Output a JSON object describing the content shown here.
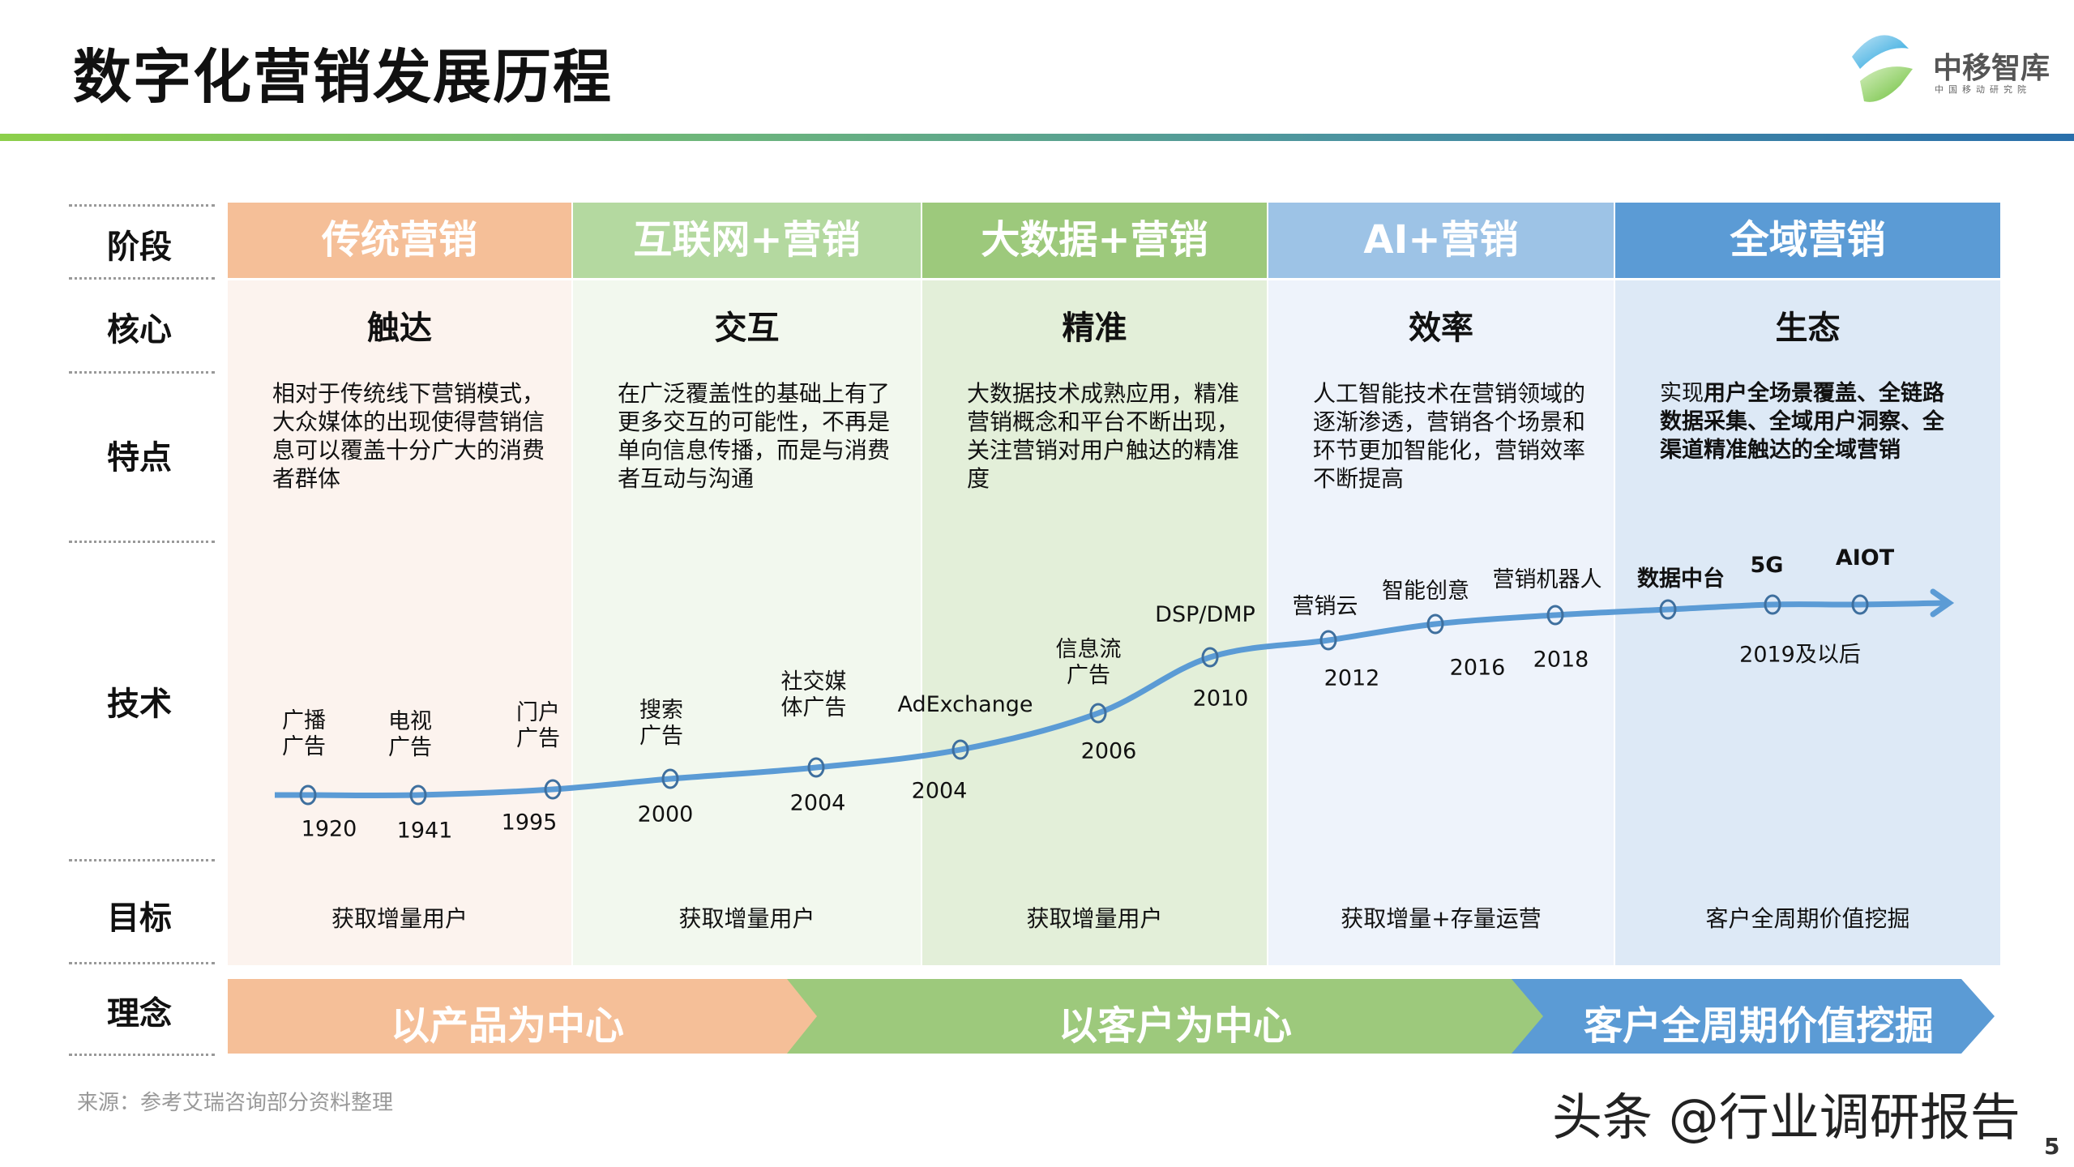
{
  "title": "数字化营销发展历程",
  "logo": {
    "brand": "中移智库",
    "sub": "中国移动研究院"
  },
  "row_labels": [
    "阶段",
    "核心",
    "特点",
    "技术",
    "目标",
    "理念"
  ],
  "columns": [
    {
      "stage": "传统营销",
      "core": "触达",
      "features": "相对于传统线下营销模式，大众媒体的出现使得营销信息可以覆盖十分广大的消费者群体",
      "goal": "获取增量用户",
      "head_color": "#f5bf98",
      "bg_color": "#fcf3ee"
    },
    {
      "stage": "互联网+营销",
      "core": "交互",
      "features": "在广泛覆盖性的基础上有了更多交互的可能性，不再是单向信息传播，而是与消费者互动与沟通",
      "goal": "获取增量用户",
      "head_color": "#b4d9a0",
      "bg_color": "#f2f8ee"
    },
    {
      "stage": "大数据+营销",
      "core": "精准",
      "features": "大数据技术成熟应用，精准营销概念和平台不断出现，关注营销对用户触达的精准度",
      "goal": "获取增量用户",
      "head_color": "#9dc97c",
      "bg_color": "#e3efd9"
    },
    {
      "stage": "AI+营销",
      "core": "效率",
      "features": "人工智能技术在营销领域的逐渐渗透，营销各个场景和环节更加智能化，营销效率不断提高",
      "goal": "获取增量+存量运营",
      "head_color": "#9dc3e6",
      "bg_color": "#eef3fb"
    },
    {
      "stage": "全域营销",
      "core": "生态",
      "features_prefix": "实现",
      "features_bold": "用户全场景覆盖、全链路数据采集、全域用户洞察、全渠道精准触达的全域营销",
      "goal": "客户全周期价值挖掘",
      "head_color": "#5b9bd5",
      "bg_color": "#dde9f6"
    }
  ],
  "tech": [
    {
      "label": "广播\n广告",
      "year": "1920"
    },
    {
      "label": "电视\n广告",
      "year": "1941"
    },
    {
      "label": "门户\n广告",
      "year": "1995"
    },
    {
      "label": "搜索\n广告",
      "year": "2000"
    },
    {
      "label": "社交媒\n体广告",
      "year": "2004"
    },
    {
      "label": "AdExchange",
      "year": "2004"
    },
    {
      "label": "信息流\n广告",
      "year": "2006"
    },
    {
      "label": "DSP/DMP",
      "year": "2010"
    },
    {
      "label": "营销云",
      "year": "2012"
    },
    {
      "label": "智能创意",
      "year": "2016"
    },
    {
      "label": "营销机器人",
      "year": "2018"
    },
    {
      "label": "数据中台",
      "bold": true
    },
    {
      "label": "5G",
      "bold": true
    },
    {
      "label": "AIOT",
      "bold": true
    }
  ],
  "tech_final_year": "2019及以后",
  "timeline_color": "#5b9bd5",
  "concepts": [
    {
      "label": "以产品为中心",
      "color": "#f5bf98"
    },
    {
      "label": "以客户为中心",
      "color": "#9dc97c"
    },
    {
      "label": "客户全周期价值挖掘",
      "color": "#5b9bd5"
    }
  ],
  "source": "来源：参考艾瑞咨询部分资料整理",
  "watermark": "头条 @行业调研报告",
  "page_number": "5"
}
